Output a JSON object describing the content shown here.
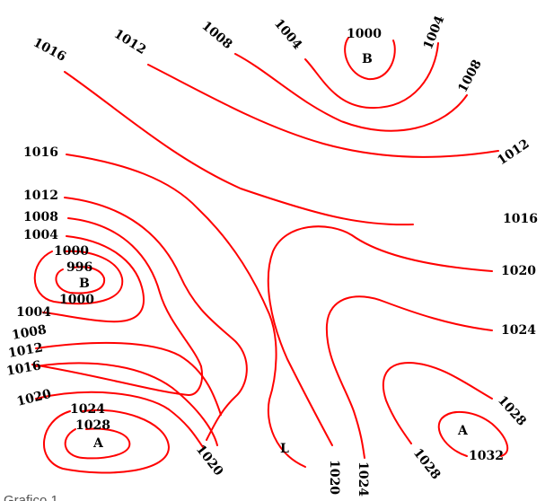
{
  "isobars": {
    "i1016a": "1016",
    "i1012a": "1012",
    "i1008a": "1008",
    "i1004a": "1004",
    "i1000a": "1000",
    "i1004b": "1004",
    "i1008b": "1008",
    "i1012b": "1012",
    "i1016b": "1016",
    "i1016c": "1016",
    "i1012c": "1012",
    "i1008c": "1008",
    "i1004c": "1004",
    "i1000b": "1000",
    "i996": "996",
    "i1000c": "1000",
    "i1004d": "1004",
    "i1008d": "1008",
    "i1012d": "1012",
    "i1016d": "1016",
    "i1020a": "1020",
    "i1024a": "1024",
    "i1028a": "1028",
    "i1020b": "1020",
    "i1020c": "1020",
    "i1024b": "1024",
    "i1024c": "1024",
    "i1028b": "1028",
    "i1028c": "1028",
    "i1032": "1032"
  },
  "centers": {
    "low_top": "B",
    "low_left": "B",
    "high_bottom_left": "A",
    "high_bottom_right": "A",
    "point_l": "L"
  },
  "caption": "Grafico 1"
}
